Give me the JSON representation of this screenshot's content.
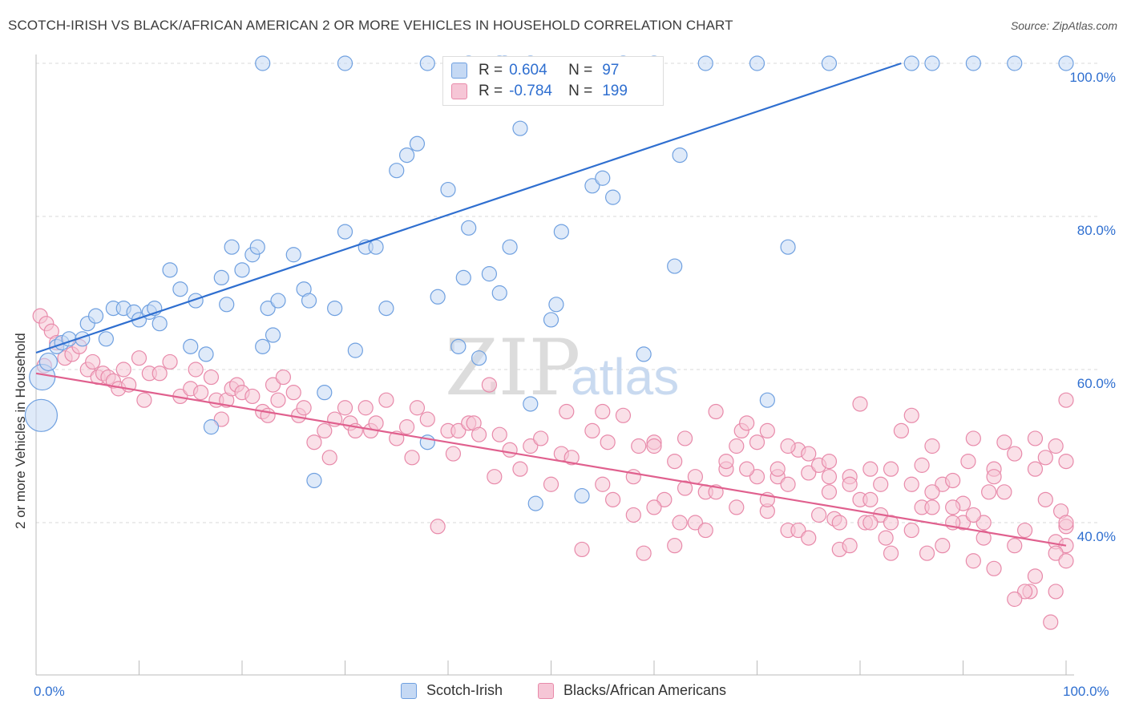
{
  "title": "SCOTCH-IRISH VS BLACK/AFRICAN AMERICAN 2 OR MORE VEHICLES IN HOUSEHOLD CORRELATION CHART",
  "source": "Source: ZipAtlas.com",
  "watermark": {
    "zip": "ZIP",
    "atlas": "atlas"
  },
  "legend_top": {
    "r_label": "R =",
    "n_label": "N =",
    "rows": [
      {
        "r": "0.604",
        "n": "97"
      },
      {
        "r": "-0.784",
        "n": "199"
      }
    ]
  },
  "chart_data": {
    "type": "scatter",
    "title": "SCOTCH-IRISH VS BLACK/AFRICAN AMERICAN 2 OR MORE VEHICLES IN HOUSEHOLD CORRELATION CHART",
    "xlabel": "",
    "ylabel": "2 or more Vehicles in Household",
    "xlim": [
      0,
      100
    ],
    "ylim": [
      20,
      104
    ],
    "x_tick_labels": [
      "0.0%",
      "100.0%"
    ],
    "y_tick_labels": [
      "100.0%",
      "80.0%",
      "60.0%",
      "40.0%"
    ],
    "y_ticks": [
      100,
      80,
      60,
      40
    ],
    "grid": true,
    "legend_position": "top-center",
    "series": [
      {
        "name": "Scotch-Irish",
        "color": "#6fa0e0",
        "fill": "#c5d9f4",
        "line_color": "#2f6fd0",
        "trend": {
          "x": [
            0,
            84
          ],
          "y": [
            62.2,
            100
          ]
        },
        "points": [
          [
            0.5,
            54
          ],
          [
            0.6,
            59
          ],
          [
            1.2,
            61
          ],
          [
            2.0,
            63
          ],
          [
            2.5,
            63.5
          ],
          [
            3.2,
            64
          ],
          [
            4.5,
            64
          ],
          [
            5.0,
            66
          ],
          [
            5.8,
            67
          ],
          [
            6.8,
            64
          ],
          [
            7.5,
            68
          ],
          [
            8.5,
            68
          ],
          [
            9.5,
            67.5
          ],
          [
            10,
            66.5
          ],
          [
            11,
            67.5
          ],
          [
            11.5,
            68
          ],
          [
            12,
            66
          ],
          [
            13,
            73
          ],
          [
            14,
            70.5
          ],
          [
            15,
            63
          ],
          [
            15.5,
            69
          ],
          [
            16.5,
            62
          ],
          [
            17,
            52.5
          ],
          [
            18,
            72
          ],
          [
            18.5,
            68.5
          ],
          [
            19,
            76
          ],
          [
            20,
            73
          ],
          [
            21,
            75
          ],
          [
            21.5,
            76
          ],
          [
            22,
            63
          ],
          [
            22.5,
            68
          ],
          [
            23,
            64.5
          ],
          [
            23.5,
            69
          ],
          [
            25,
            75
          ],
          [
            26,
            70.5
          ],
          [
            26.5,
            69
          ],
          [
            27,
            45.5
          ],
          [
            28,
            57
          ],
          [
            29,
            68
          ],
          [
            30,
            78
          ],
          [
            31,
            62.5
          ],
          [
            32,
            76
          ],
          [
            33,
            76
          ],
          [
            34,
            68
          ],
          [
            35,
            86
          ],
          [
            36,
            88
          ],
          [
            37,
            89.5
          ],
          [
            38,
            50.5
          ],
          [
            39,
            69.5
          ],
          [
            40,
            83.5
          ],
          [
            41,
            63
          ],
          [
            41.5,
            72
          ],
          [
            42,
            78.5
          ],
          [
            43,
            61.5
          ],
          [
            44,
            72.5
          ],
          [
            45,
            70
          ],
          [
            46,
            76
          ],
          [
            47,
            91.5
          ],
          [
            48,
            55.5
          ],
          [
            48.5,
            42.5
          ],
          [
            50,
            66.5
          ],
          [
            50.5,
            68.5
          ],
          [
            51,
            78
          ],
          [
            53,
            43.5
          ],
          [
            54,
            84
          ],
          [
            55,
            85
          ],
          [
            56,
            82.5
          ],
          [
            59,
            62
          ],
          [
            62,
            73.5
          ],
          [
            62.5,
            88
          ],
          [
            71,
            56
          ],
          [
            73,
            76
          ],
          [
            22,
            100
          ],
          [
            30,
            100
          ],
          [
            38,
            100
          ],
          [
            42,
            100
          ],
          [
            45,
            100
          ],
          [
            45.5,
            100
          ],
          [
            48,
            100
          ],
          [
            57,
            100
          ],
          [
            60,
            100
          ],
          [
            65,
            100
          ],
          [
            70,
            100
          ],
          [
            77,
            100
          ],
          [
            85,
            100
          ],
          [
            87,
            100
          ],
          [
            91,
            100
          ],
          [
            95,
            100
          ],
          [
            100,
            100
          ]
        ]
      },
      {
        "name": "Blacks/African Americans",
        "color": "#e88aaa",
        "fill": "#f6c6d6",
        "line_color": "#e0608e",
        "trend": {
          "x": [
            0,
            100
          ],
          "y": [
            59.5,
            37
          ]
        },
        "points": [
          [
            0.4,
            67
          ],
          [
            1,
            66
          ],
          [
            1.5,
            65
          ],
          [
            2,
            63.5
          ],
          [
            2.8,
            61.5
          ],
          [
            3.5,
            62
          ],
          [
            4.2,
            63
          ],
          [
            5,
            60
          ],
          [
            5.5,
            61
          ],
          [
            6,
            59
          ],
          [
            6.5,
            59.5
          ],
          [
            7,
            59
          ],
          [
            7.5,
            58.5
          ],
          [
            8,
            57.5
          ],
          [
            8.5,
            60
          ],
          [
            9,
            58
          ],
          [
            10,
            61.5
          ],
          [
            10.5,
            56
          ],
          [
            11,
            59.5
          ],
          [
            12,
            59.5
          ],
          [
            13,
            61
          ],
          [
            14,
            56.5
          ],
          [
            15,
            57.5
          ],
          [
            15.5,
            60
          ],
          [
            16,
            57
          ],
          [
            17,
            59
          ],
          [
            17.5,
            56
          ],
          [
            18,
            53.5
          ],
          [
            18.5,
            56
          ],
          [
            19,
            57.5
          ],
          [
            19.5,
            58
          ],
          [
            20,
            57
          ],
          [
            21,
            56.5
          ],
          [
            22,
            54.5
          ],
          [
            22.5,
            54
          ],
          [
            23,
            58
          ],
          [
            23.5,
            56
          ],
          [
            24,
            59
          ],
          [
            25,
            57
          ],
          [
            25.5,
            54
          ],
          [
            26,
            55
          ],
          [
            27,
            50.5
          ],
          [
            28,
            52
          ],
          [
            28.5,
            48.5
          ],
          [
            29,
            53.5
          ],
          [
            30,
            55
          ],
          [
            30.5,
            53
          ],
          [
            31,
            52
          ],
          [
            32,
            55
          ],
          [
            32.5,
            52
          ],
          [
            33,
            53
          ],
          [
            34,
            56
          ],
          [
            35,
            51
          ],
          [
            36,
            52.5
          ],
          [
            36.5,
            48.5
          ],
          [
            37,
            55
          ],
          [
            38,
            53.5
          ],
          [
            39,
            39.5
          ],
          [
            40,
            52
          ],
          [
            40.5,
            49
          ],
          [
            41,
            52
          ],
          [
            42,
            53
          ],
          [
            42.5,
            53
          ],
          [
            43,
            51.5
          ],
          [
            44,
            58
          ],
          [
            44.5,
            46
          ],
          [
            45,
            51.5
          ],
          [
            46,
            49.5
          ],
          [
            47,
            47
          ],
          [
            48,
            50
          ],
          [
            49,
            51
          ],
          [
            50,
            45
          ],
          [
            51,
            49
          ],
          [
            51.5,
            54.5
          ],
          [
            52,
            48.5
          ],
          [
            53,
            36.5
          ],
          [
            54,
            52
          ],
          [
            55,
            54.5
          ],
          [
            55.5,
            50.5
          ],
          [
            56,
            43
          ],
          [
            57,
            54
          ],
          [
            58,
            41
          ],
          [
            58.5,
            50
          ],
          [
            59,
            36
          ],
          [
            60,
            50.5
          ],
          [
            61,
            43
          ],
          [
            62,
            48
          ],
          [
            62.5,
            40
          ],
          [
            63,
            44.5
          ],
          [
            64,
            46
          ],
          [
            65,
            44
          ],
          [
            66,
            54.5
          ],
          [
            67,
            47
          ],
          [
            68,
            50
          ],
          [
            68.5,
            52
          ],
          [
            69,
            53
          ],
          [
            70,
            50.5
          ],
          [
            71,
            41.5
          ],
          [
            72,
            46
          ],
          [
            73,
            39
          ],
          [
            74,
            49.5
          ],
          [
            75,
            46.5
          ],
          [
            76,
            47.5
          ],
          [
            77,
            44
          ],
          [
            77.5,
            40.5
          ],
          [
            78,
            36.5
          ],
          [
            79,
            46
          ],
          [
            80,
            55.5
          ],
          [
            80.5,
            40
          ],
          [
            81,
            47
          ],
          [
            82,
            41
          ],
          [
            82.5,
            38
          ],
          [
            83,
            40
          ],
          [
            84,
            52
          ],
          [
            85,
            54
          ],
          [
            86,
            47.5
          ],
          [
            86.5,
            36
          ],
          [
            87,
            50
          ],
          [
            88,
            45
          ],
          [
            89,
            45.5
          ],
          [
            90,
            42.5
          ],
          [
            90.5,
            48
          ],
          [
            91,
            51
          ],
          [
            92,
            40
          ],
          [
            92.5,
            44
          ],
          [
            93,
            47
          ],
          [
            94,
            50.5
          ],
          [
            95,
            37
          ],
          [
            96,
            39
          ],
          [
            96.5,
            31
          ],
          [
            97,
            47
          ],
          [
            98,
            48.5
          ],
          [
            98.5,
            27
          ],
          [
            99,
            37.5
          ],
          [
            99.5,
            41.5
          ],
          [
            0.8,
            60.5
          ],
          [
            100,
            39.5
          ],
          [
            80,
            43
          ],
          [
            76,
            41
          ],
          [
            60,
            42
          ],
          [
            64,
            40
          ],
          [
            66,
            44
          ],
          [
            70,
            46
          ],
          [
            72,
            47
          ],
          [
            74,
            39
          ],
          [
            78,
            40
          ],
          [
            82,
            45
          ],
          [
            86,
            42
          ],
          [
            88,
            37
          ],
          [
            90,
            40
          ],
          [
            92,
            38
          ],
          [
            94,
            44
          ],
          [
            96,
            31
          ],
          [
            98,
            43
          ],
          [
            100,
            48
          ],
          [
            55,
            45
          ],
          [
            58,
            46
          ],
          [
            62,
            37
          ],
          [
            65,
            39
          ],
          [
            68,
            42
          ],
          [
            71,
            43
          ],
          [
            73,
            45
          ],
          [
            75,
            38
          ],
          [
            77,
            46
          ],
          [
            79,
            37
          ],
          [
            81,
            40
          ],
          [
            83,
            36
          ],
          [
            85,
            39
          ],
          [
            87,
            42
          ],
          [
            89,
            40
          ],
          [
            91,
            35
          ],
          [
            93,
            34
          ],
          [
            95,
            30
          ],
          [
            97,
            33
          ],
          [
            99,
            31
          ],
          [
            100,
            37
          ],
          [
            99,
            36
          ],
          [
            100,
            40
          ],
          [
            100,
            35
          ],
          [
            60,
            50
          ],
          [
            63,
            51
          ],
          [
            67,
            48
          ],
          [
            69,
            47
          ],
          [
            71,
            52
          ],
          [
            73,
            50
          ],
          [
            75,
            49
          ],
          [
            77,
            48
          ],
          [
            79,
            45
          ],
          [
            81,
            43
          ],
          [
            83,
            47
          ],
          [
            85,
            45
          ],
          [
            87,
            44
          ],
          [
            89,
            42
          ],
          [
            91,
            41
          ],
          [
            93,
            46
          ],
          [
            95,
            49
          ],
          [
            97,
            51
          ],
          [
            99,
            50
          ],
          [
            100,
            56
          ]
        ]
      }
    ]
  },
  "legend_bottom": [
    "Scotch-Irish",
    "Blacks/African Americans"
  ]
}
